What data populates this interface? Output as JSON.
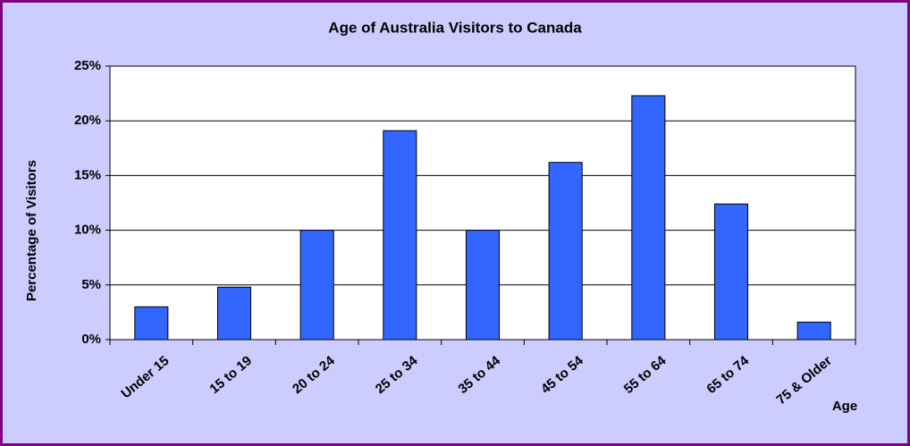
{
  "chart_data": {
    "type": "bar",
    "title": "Age of Australia Visitors to Canada",
    "y_label": "Percentage of Visitors",
    "x_label": "Age",
    "categories": [
      "Under 15",
      "15 to 19",
      "20 to 24",
      "25 to 34",
      "35 to 44",
      "45 to 54",
      "55 to 64",
      "65 to 74",
      "75 & Older"
    ],
    "values": [
      3,
      4.8,
      10,
      19.1,
      10,
      16.2,
      22.3,
      12.4,
      1.6
    ],
    "color": "#3366ff",
    "ylim": [
      0,
      25
    ],
    "yticks": [
      {
        "value": 0,
        "label": "0%"
      },
      {
        "value": 5,
        "label": "5%"
      },
      {
        "value": 10,
        "label": "10%"
      },
      {
        "value": 15,
        "label": "15%"
      },
      {
        "value": 20,
        "label": "20%"
      },
      {
        "value": 25,
        "label": "25%"
      }
    ],
    "grid": true
  }
}
